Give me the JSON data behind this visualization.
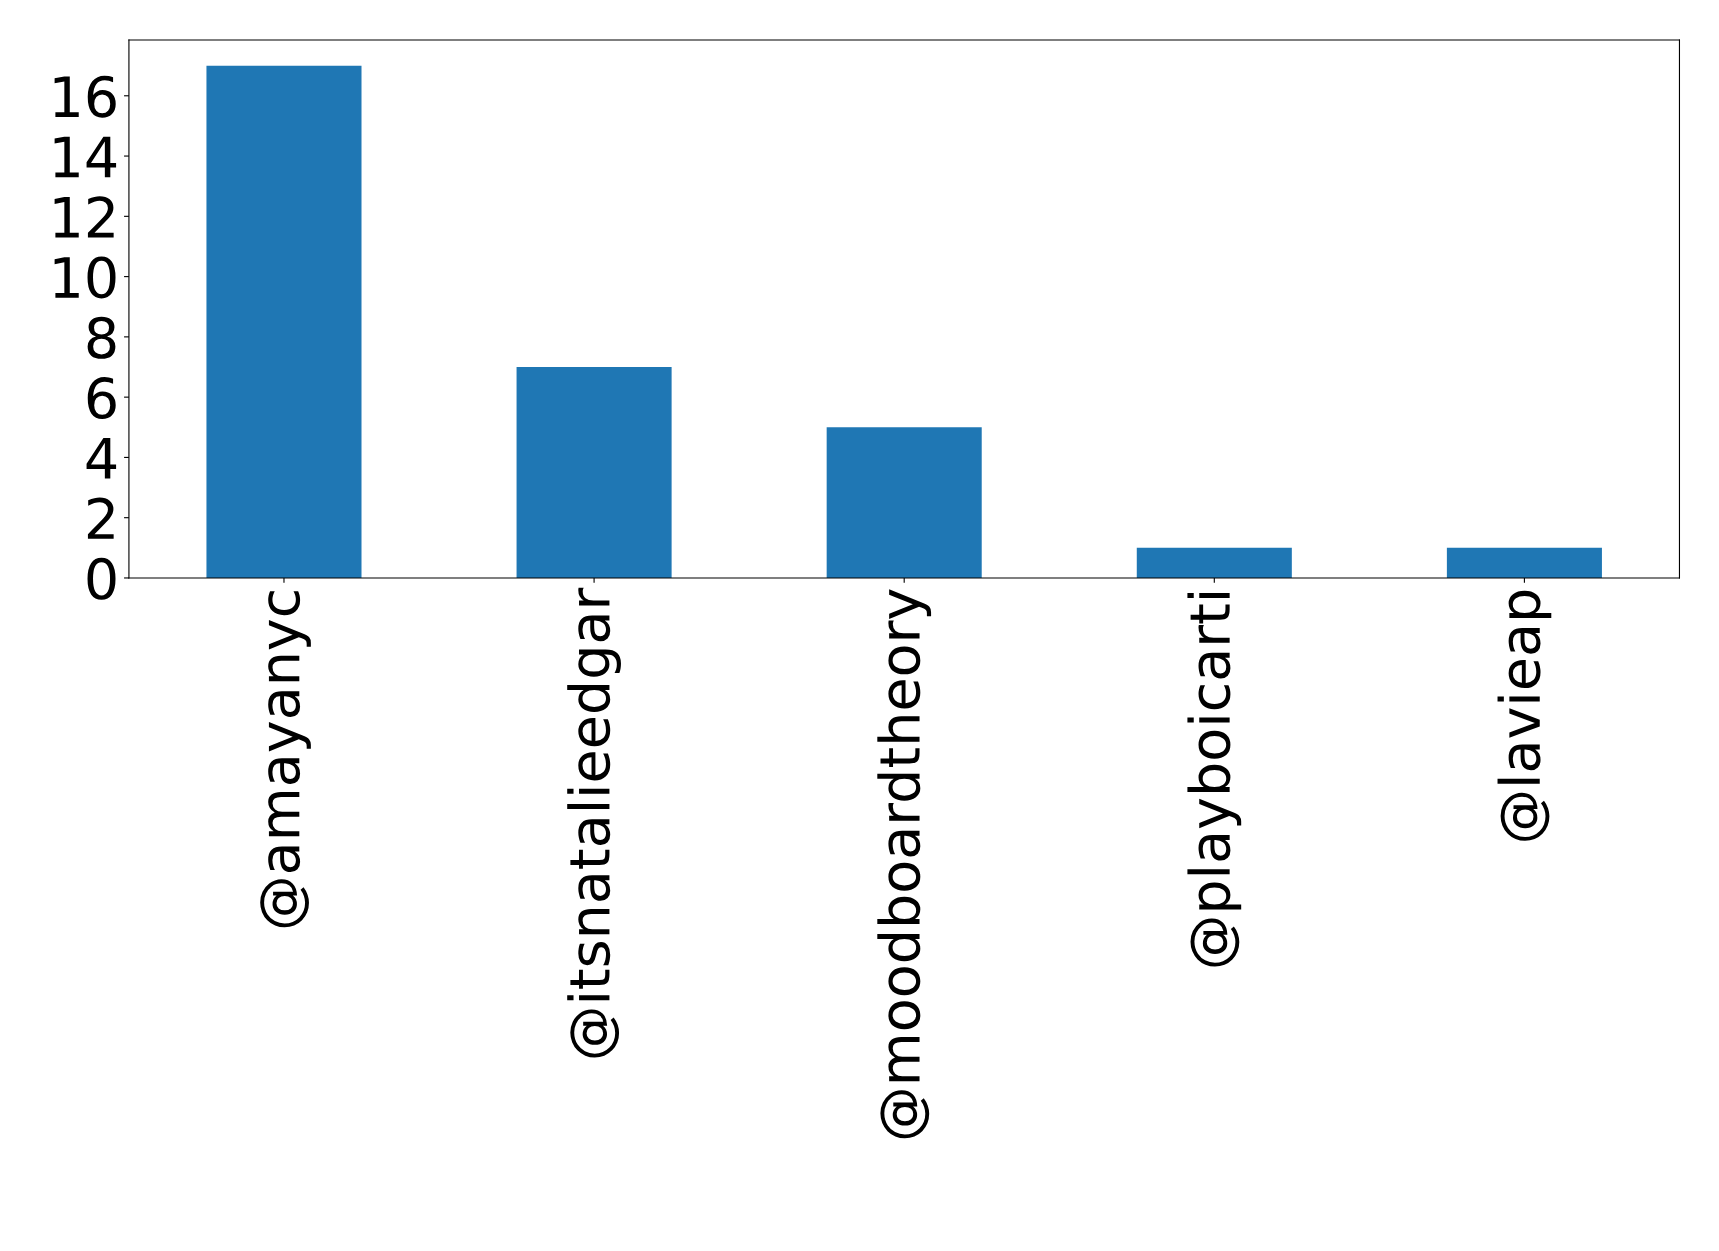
{
  "chart_data": {
    "type": "bar",
    "categories": [
      "@amayanyc",
      "@itsnatalieedgar",
      "@moodboardtheory",
      "@playboicarti",
      "@lavieap"
    ],
    "values": [
      17,
      7,
      5,
      1,
      1
    ],
    "color": "#1f77b4",
    "ylim": [
      0,
      17.85
    ],
    "yticks": [
      0,
      2,
      4,
      6,
      8,
      10,
      12,
      14,
      16
    ],
    "grid": false,
    "legend": false
  }
}
